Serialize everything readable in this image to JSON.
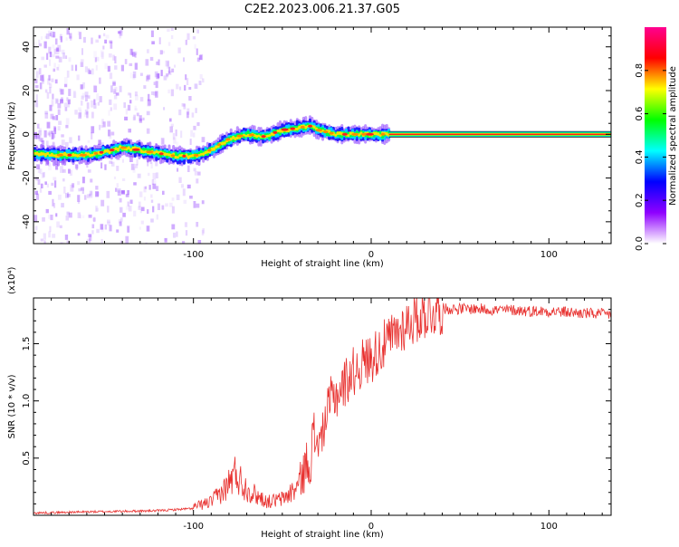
{
  "title": "C2E2.2023.006.21.37.G05",
  "chart_data": [
    {
      "type": "heatmap",
      "xlabel": "Height of straight line (km)",
      "ylabel": "Frequency (Hz)",
      "xlim": [
        -190,
        135
      ],
      "ylim": [
        -50,
        49
      ],
      "x_ticks": [
        -100,
        0,
        100
      ],
      "y_ticks": [
        -40,
        -20,
        0,
        20,
        40
      ],
      "colorbar": {
        "label": "Normalized spectral amplitude",
        "range": [
          0,
          1
        ],
        "ticks": [
          0.0,
          0.2,
          0.4,
          0.6,
          0.8
        ],
        "colors": [
          "#ffffff",
          "#8f00ff",
          "#0000ff",
          "#00ffff",
          "#00ff00",
          "#ffff00",
          "#ff0000",
          "#ff0090"
        ]
      },
      "ridge": {
        "x": [
          -190,
          -175,
          -160,
          -150,
          -140,
          -125,
          -110,
          -100,
          -90,
          -80,
          -70,
          -60,
          -50,
          -40,
          -35,
          -30,
          -20,
          -10,
          0,
          10,
          135
        ],
        "freq": [
          -9,
          -9.5,
          -9.5,
          -8,
          -6,
          -8,
          -10,
          -10,
          -7,
          -2,
          0,
          -1,
          2,
          3,
          4,
          2,
          0,
          0,
          0,
          0,
          0
        ]
      }
    },
    {
      "type": "line",
      "xlabel": "Height of straight line (km)",
      "ylabel": "SNR (10 * v/v)",
      "y_multiplier": "(x10⁴)",
      "xlim": [
        -190,
        135
      ],
      "ylim": [
        0,
        1.9
      ],
      "x_ticks": [
        -100,
        0,
        100
      ],
      "y_ticks": [
        0.5,
        1.0,
        1.5
      ],
      "y_tick_labels": [
        "0.5",
        "1.0",
        "1.5"
      ],
      "color": "#e8312f",
      "envelope": {
        "x": [
          -190,
          -160,
          -120,
          -100,
          -90,
          -82,
          -76,
          -72,
          -65,
          -58,
          -50,
          -42,
          -37,
          -33,
          -28,
          -25,
          -22,
          -18,
          -12,
          -5,
          0,
          10,
          20,
          30,
          40,
          50,
          60,
          70,
          80,
          90,
          100,
          110,
          120,
          135
        ],
        "y": [
          0.02,
          0.03,
          0.04,
          0.06,
          0.1,
          0.2,
          0.32,
          0.22,
          0.15,
          0.1,
          0.12,
          0.2,
          0.35,
          0.5,
          0.7,
          0.9,
          1.05,
          1.1,
          1.25,
          1.35,
          1.4,
          1.55,
          1.7,
          1.78,
          1.82,
          1.82,
          1.82,
          1.81,
          1.81,
          1.8,
          1.8,
          1.79,
          1.78,
          1.77
        ]
      }
    }
  ]
}
